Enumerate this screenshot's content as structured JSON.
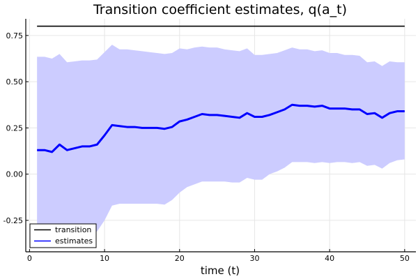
{
  "chart_data": {
    "type": "line",
    "title": "Transition coefficient estimates, q(a_t)",
    "xlabel": "time (t)",
    "ylabel": "",
    "xlim": [
      -0.5,
      51.5
    ],
    "ylim": [
      -0.42,
      0.84
    ],
    "xticks": [
      0,
      10,
      20,
      30,
      40,
      50
    ],
    "xtick_labels": [
      "0",
      "10",
      "20",
      "30",
      "40",
      "50"
    ],
    "yticks": [
      -0.25,
      0.0,
      0.25,
      0.5,
      0.75
    ],
    "ytick_labels": [
      "-0.25",
      "0.00",
      "0.25",
      "0.50",
      "0.75"
    ],
    "grid": true,
    "legend_position": "bottom-left",
    "x": [
      1,
      2,
      3,
      4,
      5,
      6,
      7,
      8,
      9,
      10,
      11,
      12,
      13,
      14,
      15,
      16,
      17,
      18,
      19,
      20,
      21,
      22,
      23,
      24,
      25,
      26,
      27,
      28,
      29,
      30,
      31,
      32,
      33,
      34,
      35,
      36,
      37,
      38,
      39,
      40,
      41,
      42,
      43,
      44,
      45,
      46,
      47,
      48,
      49,
      50
    ],
    "series": [
      {
        "name": "transition",
        "color": "#000000",
        "values": [
          0.8,
          0.8,
          0.8,
          0.8,
          0.8,
          0.8,
          0.8,
          0.8,
          0.8,
          0.8,
          0.8,
          0.8,
          0.8,
          0.8,
          0.8,
          0.8,
          0.8,
          0.8,
          0.8,
          0.8,
          0.8,
          0.8,
          0.8,
          0.8,
          0.8,
          0.8,
          0.8,
          0.8,
          0.8,
          0.8,
          0.8,
          0.8,
          0.8,
          0.8,
          0.8,
          0.8,
          0.8,
          0.8,
          0.8,
          0.8,
          0.8,
          0.8,
          0.8,
          0.8,
          0.8,
          0.8,
          0.8,
          0.8,
          0.8,
          0.8
        ]
      },
      {
        "name": "estimates",
        "color": "#0000ff",
        "values": [
          0.13,
          0.13,
          0.12,
          0.16,
          0.13,
          0.14,
          0.15,
          0.15,
          0.16,
          0.21,
          0.265,
          0.26,
          0.255,
          0.255,
          0.25,
          0.25,
          0.25,
          0.245,
          0.255,
          0.285,
          0.295,
          0.31,
          0.325,
          0.32,
          0.32,
          0.315,
          0.31,
          0.305,
          0.33,
          0.31,
          0.31,
          0.32,
          0.335,
          0.35,
          0.375,
          0.37,
          0.37,
          0.365,
          0.37,
          0.355,
          0.355,
          0.355,
          0.35,
          0.35,
          0.325,
          0.33,
          0.305,
          0.33,
          0.34,
          0.34
        ],
        "band_color": "#ccccff",
        "upper": [
          0.635,
          0.635,
          0.625,
          0.65,
          0.605,
          0.61,
          0.615,
          0.615,
          0.62,
          0.66,
          0.7,
          0.675,
          0.675,
          0.67,
          0.665,
          0.66,
          0.655,
          0.65,
          0.655,
          0.68,
          0.675,
          0.685,
          0.69,
          0.685,
          0.685,
          0.675,
          0.67,
          0.665,
          0.68,
          0.645,
          0.645,
          0.65,
          0.655,
          0.67,
          0.685,
          0.675,
          0.675,
          0.665,
          0.67,
          0.655,
          0.655,
          0.645,
          0.645,
          0.64,
          0.605,
          0.61,
          0.585,
          0.61,
          0.605,
          0.605
        ],
        "lower": [
          -0.38,
          -0.38,
          -0.38,
          -0.33,
          -0.34,
          -0.34,
          -0.33,
          -0.32,
          -0.31,
          -0.25,
          -0.17,
          -0.16,
          -0.16,
          -0.16,
          -0.16,
          -0.16,
          -0.16,
          -0.165,
          -0.14,
          -0.1,
          -0.07,
          -0.055,
          -0.04,
          -0.04,
          -0.04,
          -0.04,
          -0.045,
          -0.045,
          -0.02,
          -0.03,
          -0.03,
          0.0,
          0.015,
          0.035,
          0.065,
          0.065,
          0.065,
          0.06,
          0.065,
          0.06,
          0.065,
          0.065,
          0.06,
          0.065,
          0.045,
          0.05,
          0.03,
          0.06,
          0.075,
          0.08
        ]
      }
    ]
  }
}
